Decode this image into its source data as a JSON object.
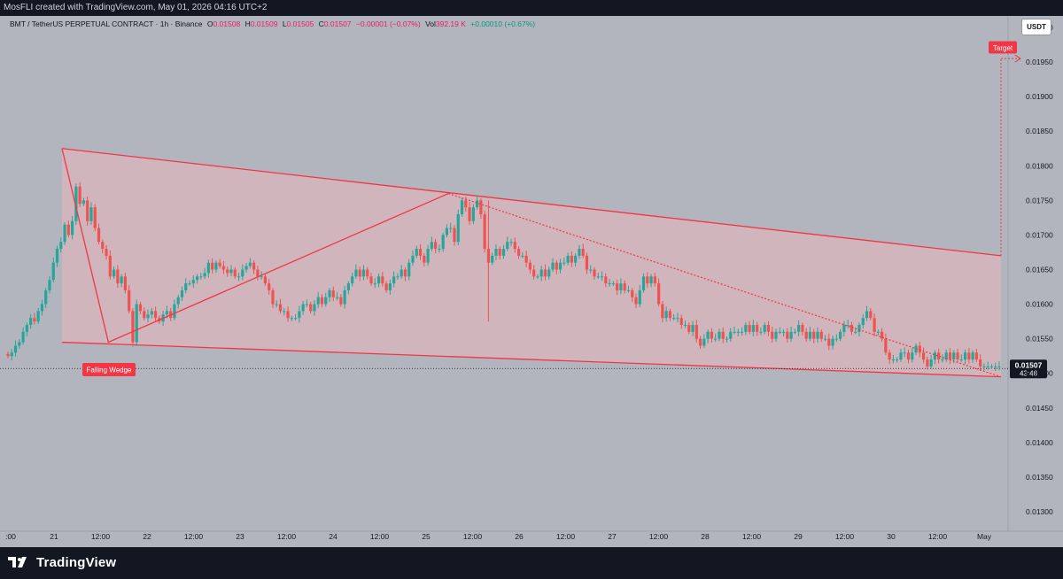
{
  "header": {
    "attribution": "MosFLI created with TradingView.com, May 01, 2026 04:16 UTC+2"
  },
  "legend": {
    "symbol": "BMT / TetherUS PERPETUAL CONTRACT · 1h · Binance",
    "o_label": "O",
    "o_value": "0.01508",
    "h_label": "H",
    "h_value": "0.01509",
    "l_label": "L",
    "l_value": "0.01505",
    "c_label": "C",
    "c_value": "0.01507",
    "change": "−0.00001 (−0.07%)",
    "vol_label": "Vol",
    "vol_value": "392.19 K",
    "vol_change": "+0.00010 (+0.67%)"
  },
  "currency_button": "USDT",
  "footer": {
    "brand": "TradingView",
    "logo_icon": "tradingview-logo-icon"
  },
  "chart_data": {
    "type": "candlestick",
    "symbol": "BMT / TetherUS PERPETUAL CONTRACT",
    "interval": "1h",
    "exchange": "Binance",
    "y_axis": {
      "range": [
        0.0128,
        0.0203
      ],
      "ticks": [
        "0.01300",
        "0.01350",
        "0.01400",
        "0.01450",
        "0.01500",
        "0.01550",
        "0.01600",
        "0.01650",
        "0.01700",
        "0.01750",
        "0.01800",
        "0.01850",
        "0.01900",
        "0.01950",
        "0.02000"
      ]
    },
    "x_axis": {
      "range_hours": [
        -54,
        190
      ],
      "ticks": [
        {
          "label": ":00",
          "t": -1
        },
        {
          "label": "21",
          "t": 0
        },
        {
          "label": "12:00",
          "t": 12
        },
        {
          "label": "22",
          "t": 24
        },
        {
          "label": "12:00",
          "t": 36
        },
        {
          "label": "23",
          "t": 48
        },
        {
          "label": "12:00",
          "t": 60
        },
        {
          "label": "24",
          "t": 72
        },
        {
          "label": "12:00",
          "t": 84
        },
        {
          "label": "25",
          "t": 96
        },
        {
          "label": "12:00",
          "t": 108
        },
        {
          "label": "26",
          "t": 120
        },
        {
          "label": "12:00",
          "t": 132
        },
        {
          "label": "27",
          "t": 144
        },
        {
          "label": "12:00",
          "t": 156
        },
        {
          "label": "28",
          "t": 168
        },
        {
          "label": "12:00",
          "t": 180
        },
        {
          "label": "29",
          "t": 192
        },
        {
          "label": "12:00",
          "t": 204
        },
        {
          "label": "30",
          "t": 216
        },
        {
          "label": "12:00",
          "t": 228
        },
        {
          "label": "May",
          "t": 240
        }
      ]
    },
    "x_start_hours": -6,
    "closes": [
      0.01525,
      0.0153,
      0.0154,
      0.01545,
      0.0156,
      0.0157,
      0.0158,
      0.01575,
      0.0159,
      0.016,
      0.0162,
      0.01635,
      0.0166,
      0.0168,
      0.0169,
      0.01715,
      0.017,
      0.0172,
      0.0177,
      0.01745,
      0.0175,
      0.0172,
      0.0174,
      0.0171,
      0.0169,
      0.0168,
      0.0167,
      0.0164,
      0.0165,
      0.0163,
      0.0164,
      0.0162,
      0.0159,
      0.01545,
      0.016,
      0.0159,
      0.0158,
      0.01585,
      0.0159,
      0.0158,
      0.01575,
      0.01585,
      0.0159,
      0.0158,
      0.016,
      0.0161,
      0.0162,
      0.0163,
      0.0163,
      0.01635,
      0.0164,
      0.0164,
      0.01645,
      0.0166,
      0.0165,
      0.0166,
      0.01655,
      0.0165,
      0.01645,
      0.0165,
      0.0164,
      0.0164,
      0.0165,
      0.01655,
      0.0166,
      0.0165,
      0.0164,
      0.0164,
      0.0163,
      0.0162,
      0.016,
      0.016,
      0.0159,
      0.0159,
      0.0158,
      0.0158,
      0.0158,
      0.0159,
      0.016,
      0.016,
      0.0159,
      0.016,
      0.0161,
      0.016,
      0.0161,
      0.0162,
      0.0161,
      0.0161,
      0.016,
      0.0162,
      0.0163,
      0.0164,
      0.0165,
      0.0164,
      0.0165,
      0.0164,
      0.0163,
      0.0163,
      0.0164,
      0.0163,
      0.0162,
      0.0163,
      0.0164,
      0.0164,
      0.0165,
      0.0164,
      0.0166,
      0.0167,
      0.0168,
      0.0167,
      0.0166,
      0.0168,
      0.0169,
      0.0168,
      0.0168,
      0.017,
      0.0171,
      0.0171,
      0.0169,
      0.0173,
      0.0175,
      0.0174,
      0.0172,
      0.0174,
      0.0175,
      0.0173,
      0.0168,
      0.0166,
      0.0167,
      0.0168,
      0.0167,
      0.0168,
      0.0169,
      0.0169,
      0.0168,
      0.0167,
      0.0167,
      0.0166,
      0.0165,
      0.0164,
      0.0164,
      0.0165,
      0.0164,
      0.0165,
      0.0166,
      0.0165,
      0.0166,
      0.0166,
      0.0167,
      0.0166,
      0.0167,
      0.0168,
      0.0167,
      0.0165,
      0.0165,
      0.0164,
      0.0164,
      0.0164,
      0.0163,
      0.0163,
      0.0163,
      0.0162,
      0.0163,
      0.0162,
      0.0162,
      0.0161,
      0.016,
      0.0162,
      0.0164,
      0.0163,
      0.0164,
      0.0163,
      0.016,
      0.0158,
      0.0159,
      0.0158,
      0.0158,
      0.0158,
      0.0157,
      0.0157,
      0.0156,
      0.0157,
      0.0155,
      0.0154,
      0.0155,
      0.0156,
      0.0155,
      0.0155,
      0.0156,
      0.0155,
      0.0155,
      0.0156,
      0.0156,
      0.0156,
      0.0156,
      0.0157,
      0.0156,
      0.0157,
      0.0156,
      0.0156,
      0.0157,
      0.0156,
      0.0155,
      0.0156,
      0.0156,
      0.0156,
      0.0155,
      0.0156,
      0.0156,
      0.0157,
      0.0156,
      0.0155,
      0.0156,
      0.0155,
      0.0156,
      0.0155,
      0.0155,
      0.0154,
      0.0155,
      0.0155,
      0.0156,
      0.0157,
      0.0157,
      0.0156,
      0.0156,
      0.0157,
      0.0158,
      0.0159,
      0.0158,
      0.0156,
      0.0156,
      0.0155,
      0.0153,
      0.0152,
      0.0152,
      0.0152,
      0.0153,
      0.0153,
      0.0152,
      0.0153,
      0.0154,
      0.0153,
      0.0152,
      0.0151,
      0.0152,
      0.0153,
      0.0152,
      0.0152,
      0.0153,
      0.0152,
      0.0153,
      0.0152,
      0.0152,
      0.0153,
      0.0152,
      0.0153,
      0.0152,
      0.0151,
      0.0151,
      0.0151,
      0.0151,
      0.0151,
      0.0151
    ],
    "price_label": {
      "value": "0.01507",
      "countdown": "43:48"
    },
    "drawings": {
      "falling_wedge_label": "Falling Wedge",
      "target_label": "Target",
      "wedge_upper": [
        [
          3,
          0.01825
        ],
        [
          246,
          0.0167
        ]
      ],
      "wedge_lower": [
        [
          3,
          0.01545
        ],
        [
          246,
          0.01495
        ]
      ],
      "pattern_lines": [
        [
          [
            3,
            0.01825
          ],
          [
            15,
            0.01545
          ],
          [
            103,
            0.0176
          ]
        ]
      ],
      "projection_dotted": [
        [
          103,
          0.0176
        ],
        [
          246,
          0.01495
        ]
      ],
      "target_arrow": [
        [
          246,
          0.0167
        ],
        [
          246,
          0.01955
        ]
      ],
      "current_price_line": 0.01507
    },
    "colors": {
      "up": "#26a69a",
      "down": "#ef5350",
      "wedge_fill": "#f3b6ba",
      "wedge_line": "#f23645",
      "background": "#b2b5be"
    }
  }
}
